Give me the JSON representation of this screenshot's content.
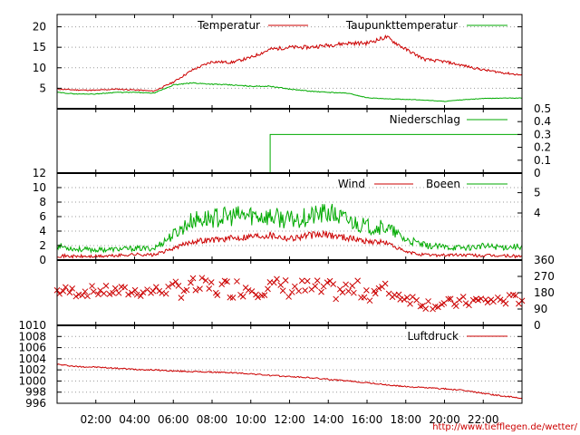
{
  "credit": "http://www.tiefflegen.de/wetter/",
  "time_axis": {
    "min": 0,
    "max": 24,
    "ticks": [
      2,
      4,
      6,
      8,
      10,
      12,
      14,
      16,
      18,
      20,
      22
    ],
    "tick_labels": [
      "02:00",
      "04:00",
      "06:00",
      "08:00",
      "10:00",
      "12:00",
      "14:00",
      "16:00",
      "18:00",
      "20:00",
      "22:00"
    ]
  },
  "chart_data": [
    {
      "type": "line",
      "ylim": [
        0,
        23
      ],
      "yticks": [
        5,
        10,
        15,
        20
      ],
      "ytick_labels": [
        "5",
        "10",
        "15",
        "20"
      ],
      "grid": true,
      "legend": "top-right",
      "x": [
        0,
        1,
        2,
        3,
        4,
        5,
        6,
        7,
        8,
        9,
        10,
        11,
        12,
        13,
        14,
        15,
        16,
        17,
        18,
        19,
        20,
        21,
        22,
        23,
        24
      ],
      "series": [
        {
          "name": "Temperatur",
          "color": "#cc0000",
          "values": [
            4.8,
            4.6,
            4.5,
            4.8,
            4.6,
            4.3,
            6.5,
            9.5,
            11.5,
            11.3,
            12.5,
            14.5,
            15,
            15,
            15.5,
            16,
            16,
            17.5,
            14.5,
            12,
            11.5,
            10.5,
            9.5,
            8.8,
            8.2
          ]
        },
        {
          "name": "Taupunkttemperatur",
          "color": "#00aa00",
          "values": [
            4,
            3.6,
            3.6,
            4,
            4,
            3.8,
            5.8,
            6.3,
            6,
            5.8,
            5.5,
            5.5,
            4.8,
            4.3,
            4,
            3.8,
            2.7,
            2.4,
            2.3,
            2.1,
            1.8,
            2.2,
            2.5,
            2.6,
            2.6
          ]
        }
      ]
    },
    {
      "type": "line",
      "ylim": [
        0,
        0.5
      ],
      "yticks": [
        0,
        0.1,
        0.2,
        0.3,
        0.4,
        0.5
      ],
      "ytick_labels": [
        "0",
        "0.1",
        "0.2",
        "0.3",
        "0.4",
        "0.5"
      ],
      "axis_side": "right",
      "legend": "top-right",
      "x": [
        0,
        11,
        11,
        24
      ],
      "series": [
        {
          "name": "Niederschlag",
          "color": "#00aa00",
          "values": [
            0,
            0,
            0.3,
            0.3
          ]
        }
      ]
    },
    {
      "type": "line",
      "ylim": [
        0,
        12
      ],
      "yticks": [
        0,
        2,
        4,
        6,
        8,
        10,
        12
      ],
      "ytick_labels": [
        "0",
        "2",
        "4",
        "6",
        "8",
        "10",
        "12"
      ],
      "right_ticks": [
        4,
        5
      ],
      "right_tick_values": [
        6.5,
        9.3
      ],
      "grid": true,
      "legend": "top-right",
      "x": [
        0,
        1,
        2,
        3,
        4,
        5,
        6,
        7,
        8,
        9,
        10,
        11,
        12,
        13,
        14,
        15,
        16,
        17,
        18,
        19,
        20,
        21,
        22,
        23,
        24
      ],
      "series": [
        {
          "name": "Wind",
          "color": "#cc0000",
          "values": [
            0.6,
            0.5,
            0.5,
            0.6,
            0.8,
            0.7,
            1.6,
            2.6,
            2.8,
            3,
            3.3,
            3.5,
            3,
            3.4,
            3.5,
            3.1,
            2.6,
            2.4,
            1.1,
            0.7,
            0.7,
            0.7,
            0.6,
            0.6,
            0.5
          ]
        },
        {
          "name": "Boeen",
          "color": "#00aa00",
          "values": [
            2,
            1.5,
            1.4,
            1.5,
            1.6,
            1.6,
            3.5,
            5.5,
            5.8,
            6,
            6.2,
            6,
            5.5,
            6,
            6.5,
            5.5,
            4.6,
            4.5,
            2.8,
            2,
            1.8,
            1.7,
            1.9,
            1.8,
            1.9
          ]
        }
      ]
    },
    {
      "type": "scatter",
      "ylim": [
        0,
        360
      ],
      "yticks": [
        0,
        90,
        180,
        270,
        360
      ],
      "ytick_labels": [
        "0",
        "90",
        "180",
        "270",
        "360"
      ],
      "axis_side": "right",
      "color": "#cc0000",
      "x": [
        0,
        1,
        2,
        3,
        4,
        5,
        6,
        7,
        8,
        9,
        10,
        11,
        12,
        13,
        14,
        15,
        16,
        17,
        18,
        19,
        20,
        21,
        22,
        23,
        24
      ],
      "values": [
        190,
        185,
        190,
        188,
        185,
        190,
        200,
        210,
        205,
        205,
        210,
        210,
        205,
        200,
        190,
        195,
        190,
        185,
        155,
        120,
        115,
        130,
        135,
        140,
        145
      ]
    },
    {
      "type": "line",
      "ylim": [
        996,
        1010
      ],
      "yticks": [
        996,
        998,
        1000,
        1002,
        1004,
        1006,
        1008,
        1010
      ],
      "ytick_labels": [
        "996",
        "998",
        "1000",
        "1002",
        "1004",
        "1006",
        "1008",
        "1010"
      ],
      "grid": true,
      "legend": "top-right",
      "x": [
        0,
        1,
        2,
        3,
        4,
        5,
        6,
        7,
        8,
        9,
        10,
        11,
        12,
        13,
        14,
        15,
        16,
        17,
        18,
        19,
        20,
        21,
        22,
        23,
        24
      ],
      "series": [
        {
          "name": "Luftdruck",
          "color": "#cc0000",
          "values": [
            1003,
            1002.6,
            1002.5,
            1002.3,
            1002.1,
            1002,
            1001.8,
            1001.7,
            1001.6,
            1001.5,
            1001.3,
            1001,
            1000.8,
            1000.6,
            1000.3,
            1000,
            999.7,
            999.3,
            999,
            998.8,
            998.6,
            998.3,
            997.8,
            997.3,
            996.9
          ]
        }
      ]
    }
  ]
}
